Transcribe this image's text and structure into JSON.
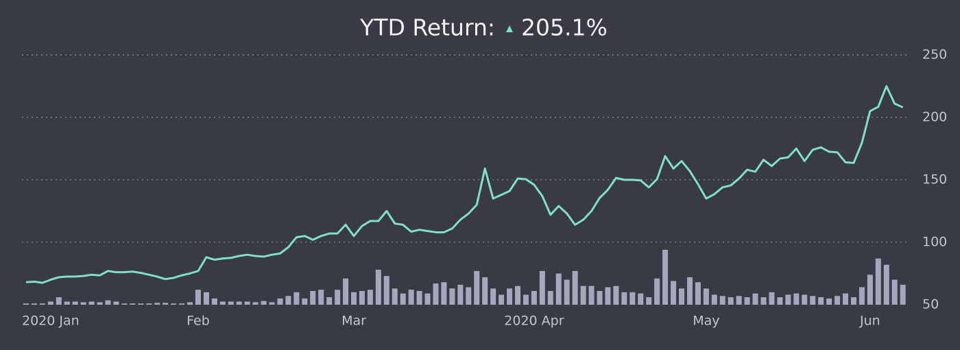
{
  "chart_data": {
    "type": "line",
    "title": "YTD Return:",
    "annotation": "205.1%",
    "annotation_color": "#7de0c8",
    "categories": [
      "2020 Jan",
      null,
      null,
      null,
      null,
      null,
      null,
      null,
      null,
      null,
      null,
      null,
      null,
      null,
      null,
      null,
      null,
      null,
      null,
      null,
      null,
      "Feb",
      null,
      null,
      null,
      null,
      null,
      null,
      null,
      null,
      null,
      null,
      null,
      null,
      null,
      null,
      null,
      null,
      null,
      null,
      "Mar",
      null,
      null,
      null,
      null,
      null,
      null,
      null,
      null,
      null,
      null,
      null,
      null,
      null,
      null,
      null,
      null,
      null,
      null,
      null,
      null,
      null,
      "2020 Apr",
      null,
      null,
      null,
      null,
      null,
      null,
      null,
      null,
      null,
      null,
      null,
      null,
      null,
      null,
      null,
      null,
      null,
      null,
      null,
      null,
      "May",
      null,
      null,
      null,
      null,
      null,
      null,
      null,
      null,
      null,
      null,
      null,
      null,
      null,
      null,
      null,
      null,
      null,
      null,
      null,
      "Jun",
      null,
      null,
      null,
      null
    ],
    "series": [
      {
        "type": "bar",
        "color": "#a7a6bf",
        "values": [
          51,
          51,
          51,
          52.5,
          56,
          52.5,
          52.5,
          52,
          52.5,
          52,
          53.5,
          52.5,
          51,
          51,
          51,
          51,
          51.5,
          51.5,
          51,
          51,
          52,
          62,
          60,
          55,
          52.5,
          52.5,
          52.5,
          52.5,
          52,
          53,
          52,
          55,
          57,
          60,
          55,
          61,
          62,
          56,
          62,
          71,
          60,
          61,
          62,
          78,
          73,
          63,
          59,
          62,
          61,
          59,
          67,
          68,
          63,
          66,
          64,
          77,
          72,
          63,
          58,
          63,
          65,
          58,
          61,
          77,
          61,
          75,
          70,
          77,
          65,
          65,
          61,
          64,
          65,
          60,
          60,
          59,
          56,
          71,
          94,
          69,
          63,
          72,
          68,
          63,
          58,
          57,
          56,
          57,
          56,
          59,
          56,
          60,
          56,
          58,
          59,
          58,
          57,
          56,
          55,
          57,
          59,
          56,
          64,
          74,
          87,
          82,
          70,
          66
        ]
      },
      {
        "type": "line",
        "color": "#7de0c8",
        "values": [
          68,
          68.5,
          67.5,
          70,
          72,
          72.5,
          72.5,
          73,
          74,
          73.5,
          77,
          76,
          76,
          76.5,
          75.5,
          74,
          72.5,
          70.5,
          71.5,
          73.5,
          75,
          77,
          88,
          86,
          87,
          87.5,
          89,
          90,
          89,
          88.5,
          90,
          91,
          96,
          104,
          105,
          102,
          105,
          107,
          107,
          114,
          105,
          113,
          117,
          117,
          125,
          115,
          114,
          108.5,
          110,
          109,
          108,
          108,
          111,
          118,
          123,
          130,
          159,
          135,
          138,
          141,
          151,
          150.5,
          146,
          137,
          122,
          129,
          123,
          114,
          118,
          125,
          135.5,
          142,
          151.5,
          150,
          150,
          149.5,
          144,
          150.5,
          169,
          159,
          165,
          157,
          146.5,
          135,
          138.5,
          144,
          145.5,
          151,
          158,
          156.5,
          166,
          161,
          167,
          168,
          175,
          165,
          174,
          176,
          172.5,
          172,
          164,
          163.5,
          179.5,
          205,
          208.5,
          225,
          211,
          208
        ]
      }
    ],
    "ylim": [
      50,
      250
    ],
    "yticks": [
      50,
      100,
      150,
      200,
      250
    ],
    "grid": true
  }
}
